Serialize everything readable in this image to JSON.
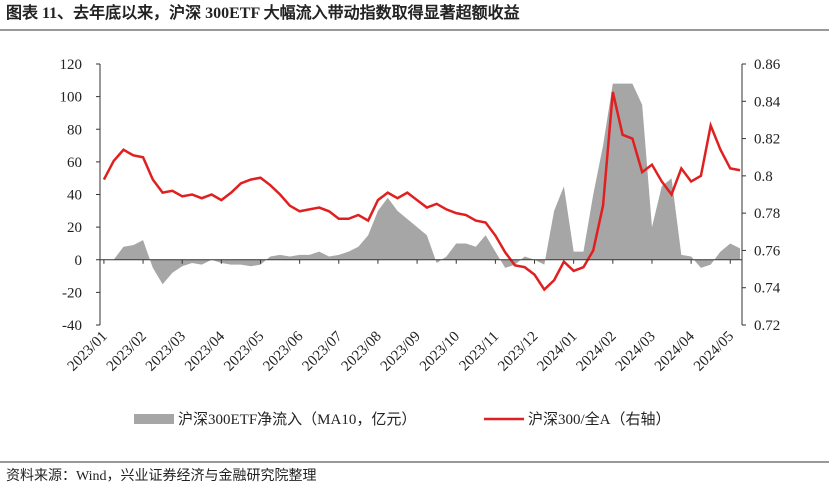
{
  "chart_data": {
    "type": "area_line",
    "title": "图表 11、去年底以来，沪深 300ETF 大幅流入带动指数取得显著超额收益",
    "source": "资料来源：Wind，兴业证券经济与金融研究院整理",
    "x": [
      0,
      0.25,
      0.5,
      0.75,
      1,
      1.25,
      1.5,
      1.75,
      2,
      2.25,
      2.5,
      2.75,
      3,
      3.25,
      3.5,
      3.75,
      4,
      4.25,
      4.5,
      4.75,
      5,
      5.25,
      5.5,
      5.75,
      6,
      6.25,
      6.5,
      6.75,
      7,
      7.25,
      7.5,
      7.75,
      8,
      8.25,
      8.5,
      8.75,
      9,
      9.25,
      9.5,
      9.75,
      10,
      10.25,
      10.5,
      10.75,
      11,
      11.25,
      11.5,
      11.75,
      12,
      12.25,
      12.5,
      12.75,
      13,
      13.25,
      13.5,
      13.75,
      14,
      14.25,
      14.5,
      14.75,
      15,
      15.25,
      15.5,
      15.75,
      16,
      16.25
    ],
    "xlim": [
      -0.1,
      16.3
    ],
    "xticks": [
      {
        "value": 0,
        "label": "2023/01"
      },
      {
        "value": 1,
        "label": "2023/02"
      },
      {
        "value": 2,
        "label": "2023/03"
      },
      {
        "value": 3,
        "label": "2023/04"
      },
      {
        "value": 4,
        "label": "2023/05"
      },
      {
        "value": 5,
        "label": "2023/06"
      },
      {
        "value": 6,
        "label": "2023/07"
      },
      {
        "value": 7,
        "label": "2023/08"
      },
      {
        "value": 8,
        "label": "2023/09"
      },
      {
        "value": 9,
        "label": "2023/10"
      },
      {
        "value": 10,
        "label": "2023/11"
      },
      {
        "value": 11,
        "label": "2023/12"
      },
      {
        "value": 12,
        "label": "2024/01"
      },
      {
        "value": 13,
        "label": "2024/02"
      },
      {
        "value": 14,
        "label": "2024/03"
      },
      {
        "value": 15,
        "label": "2024/04"
      },
      {
        "value": 16,
        "label": "2024/05"
      }
    ],
    "ylim": [
      -40,
      120
    ],
    "yticks": [
      -40,
      -20,
      0,
      20,
      40,
      60,
      80,
      100,
      120
    ],
    "y2lim": [
      0.72,
      0.86
    ],
    "y2ticks": [
      0.72,
      0.74,
      0.76,
      0.78,
      0.8,
      0.82,
      0.84,
      0.86
    ],
    "series": [
      {
        "name": "沪深300ETF净流入（MA10，亿元）",
        "color": "#a6a6a6",
        "kind": "area",
        "values": [
          0,
          0,
          8,
          9,
          12,
          -5,
          -15,
          -8,
          -4,
          -2,
          -3,
          0,
          -2,
          -3,
          -3,
          -4,
          -3,
          2,
          3,
          2,
          3,
          3,
          5,
          2,
          3,
          5,
          8,
          15,
          30,
          38,
          30,
          25,
          20,
          15,
          -2,
          2,
          10,
          10,
          8,
          15,
          5,
          -5,
          -3,
          2,
          0,
          -3,
          30,
          45,
          5,
          5,
          40,
          70,
          108,
          108,
          108,
          95,
          20,
          45,
          50,
          3,
          2,
          -5,
          -3,
          5,
          10,
          7
        ]
      },
      {
        "name": "沪深300/全A（右轴）",
        "color": "#e02020",
        "kind": "line",
        "axis": "y2",
        "values": [
          0.798,
          0.808,
          0.814,
          0.811,
          0.81,
          0.798,
          0.791,
          0.792,
          0.789,
          0.79,
          0.788,
          0.79,
          0.787,
          0.791,
          0.796,
          0.798,
          0.799,
          0.795,
          0.79,
          0.784,
          0.781,
          0.782,
          0.783,
          0.781,
          0.777,
          0.777,
          0.779,
          0.776,
          0.787,
          0.791,
          0.788,
          0.791,
          0.787,
          0.783,
          0.785,
          0.782,
          0.78,
          0.779,
          0.776,
          0.775,
          0.768,
          0.759,
          0.752,
          0.751,
          0.747,
          0.739,
          0.744,
          0.754,
          0.749,
          0.751,
          0.76,
          0.784,
          0.845,
          0.822,
          0.82,
          0.802,
          0.806,
          0.797,
          0.79,
          0.804,
          0.797,
          0.8,
          0.827,
          0.814,
          0.804,
          0.803
        ]
      }
    ]
  }
}
